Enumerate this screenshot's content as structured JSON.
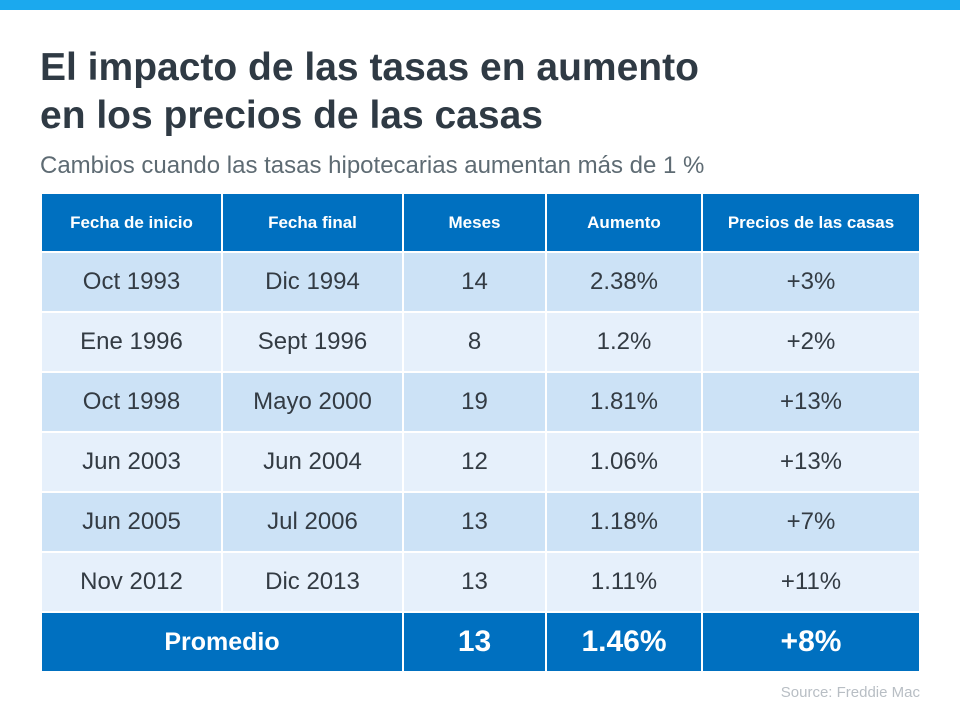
{
  "title_line1": "El impacto de las tasas en aumento",
  "title_line2": "en los precios de las casas",
  "subtitle": "Cambios cuando las tasas hipotecarias aumentan más de 1 %",
  "source": "Source: Freddie Mac",
  "colors": {
    "accent_bar": "#1BA9EE",
    "header": "#0070C0",
    "row_odd": "#CCE2F6",
    "row_even": "#E6F0FB"
  },
  "chart_data": {
    "type": "table",
    "columns": [
      "Fecha de inicio",
      "Fecha final",
      "Meses",
      "Aumento",
      "Precios de las casas"
    ],
    "rows": [
      [
        "Oct 1993",
        "Dic 1994",
        "14",
        "2.38%",
        "+3%"
      ],
      [
        "Ene 1996",
        "Sept 1996",
        "8",
        "1.2%",
        "+2%"
      ],
      [
        "Oct 1998",
        "Mayo 2000",
        "19",
        "1.81%",
        "+13%"
      ],
      [
        "Jun 2003",
        "Jun 2004",
        "12",
        "1.06%",
        "+13%"
      ],
      [
        "Jun 2005",
        "Jul 2006",
        "13",
        "1.18%",
        "+7%"
      ],
      [
        "Nov 2012",
        "Dic 2013",
        "13",
        "1.11%",
        "+11%"
      ]
    ],
    "average": {
      "label": "Promedio",
      "months": "13",
      "increase": "1.46%",
      "prices": "+8%"
    }
  }
}
